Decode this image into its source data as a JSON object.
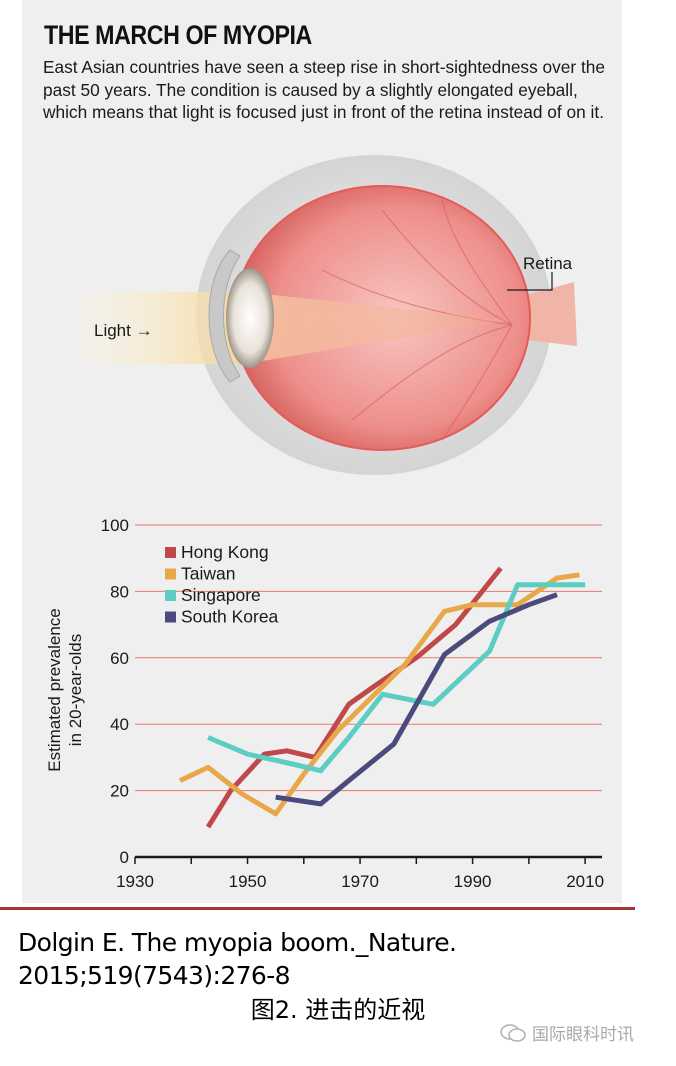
{
  "header": {
    "title": "THE MARCH OF MYOPIA",
    "intro": "East Asian countries have seen a steep rise in short-sightedness over the past 50 years. The condition is caused by a slightly elongated eyeball, which means that light is focused just in front of the retina instead of on it."
  },
  "diagram": {
    "light_label": "Light →",
    "retina_label": "Retina"
  },
  "colors": {
    "hong_kong": "#c0474a",
    "taiwan": "#e8a84a",
    "singapore": "#5ccdc3",
    "south_korea": "#4a4a7c",
    "gridline": "#e8796c",
    "rule": "#a0392b"
  },
  "chart_data": {
    "type": "line",
    "title": "",
    "xlabel": "",
    "ylabel": "Estimated prevalence in 20-year-olds",
    "ylabel_lines": [
      "Estimated prevalence",
      "in 20-year-olds"
    ],
    "xlim": [
      1930,
      2013
    ],
    "ylim": [
      0,
      100
    ],
    "xticks": [
      1930,
      1950,
      1970,
      1990,
      2010
    ],
    "yticks": [
      0,
      20,
      40,
      60,
      80,
      100
    ],
    "legend_position": "top-left",
    "series": [
      {
        "name": "Hong Kong",
        "color": "#c0474a",
        "x": [
          1943,
          1947,
          1953,
          1957,
          1962,
          1968,
          1973,
          1980,
          1987,
          1995
        ],
        "y": [
          9,
          20,
          31,
          32,
          30,
          46,
          52,
          60,
          70,
          87
        ]
      },
      {
        "name": "Taiwan",
        "color": "#e8a84a",
        "x": [
          1938,
          1943,
          1949,
          1955,
          1960,
          1966,
          1972,
          1978,
          1985,
          1990,
          1998,
          2005,
          2009
        ],
        "y": [
          23,
          27,
          19,
          13,
          25,
          38,
          48,
          58,
          74,
          76,
          76,
          84,
          85
        ]
      },
      {
        "name": "Singapore",
        "color": "#5ccdc3",
        "x": [
          1943,
          1950,
          1958,
          1963,
          1968,
          1974,
          1983,
          1993,
          1998,
          2005,
          2010
        ],
        "y": [
          36,
          31,
          28,
          26,
          36,
          49,
          46,
          62,
          82,
          82,
          82
        ]
      },
      {
        "name": "South Korea",
        "color": "#4a4a7c",
        "x": [
          1955,
          1963,
          1968,
          1976,
          1985,
          1993,
          2000,
          2005
        ],
        "y": [
          18,
          16,
          23,
          34,
          61,
          71,
          76,
          79
        ]
      }
    ]
  },
  "footer": {
    "citation_line1": "Dolgin E. The myopia boom._Nature.",
    "citation_line2": "2015;519(7543):276-8",
    "caption": "图2. 进击的近视",
    "watermark": "国际眼科时讯"
  }
}
